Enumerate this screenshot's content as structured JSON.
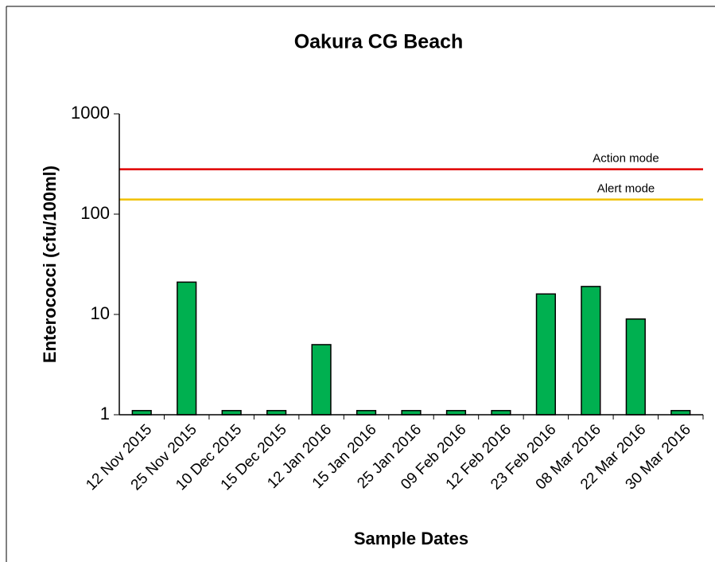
{
  "chart_data": {
    "type": "bar",
    "title": "Oakura CG Beach",
    "x_label": "Sample Dates",
    "y_label": "Enterococci (cfu/100ml)",
    "categories": [
      "12 Nov 2015",
      "25 Nov 2015",
      "10 Dec 2015",
      "15 Dec 2015",
      "12 Jan 2016",
      "15 Jan 2016",
      "25 Jan 2016",
      "09 Feb 2016",
      "12 Feb 2016",
      "23 Feb 2016",
      "08 Mar 2016",
      "22 Mar 2016",
      "30 Mar 2016"
    ],
    "values": [
      1.1,
      21,
      1.1,
      1.1,
      5,
      1.1,
      1.1,
      1.1,
      1.1,
      16,
      19,
      9,
      1.1
    ],
    "color": "#00b050",
    "ylim": [
      1,
      1000
    ],
    "yticks": [
      1,
      10,
      100,
      1000
    ],
    "log_scale": true,
    "grid": false,
    "thresholds": [
      {
        "name": "Action mode",
        "value": 280,
        "color": "#e00000"
      },
      {
        "name": "Alert mode",
        "value": 140,
        "color": "#f0c000"
      }
    ]
  }
}
